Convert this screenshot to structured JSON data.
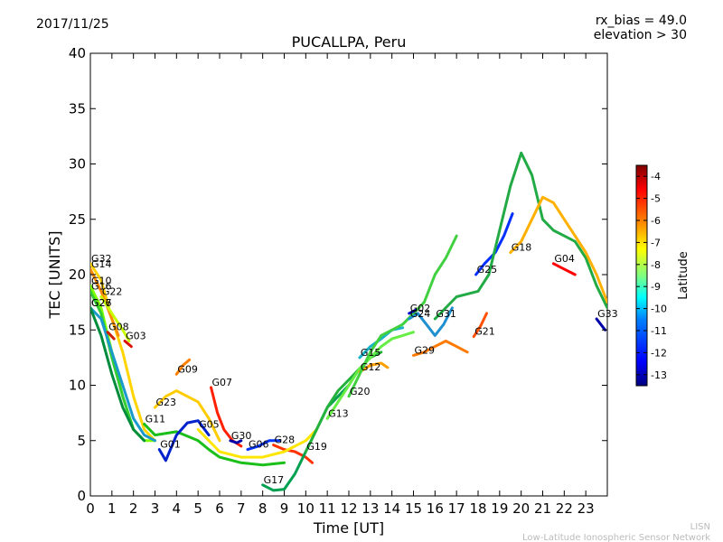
{
  "header": {
    "date": "2017/11/25",
    "rx_bias": "rx_bias = 49.0",
    "elevation": "elevation > 30"
  },
  "footer": {
    "line1": "LISN",
    "line2": "Low-Latitude Ionospheric Sensor Network"
  },
  "chart_data": {
    "type": "line",
    "title": "PUCALLPA, Peru",
    "xlabel": "Time [UT]",
    "ylabel": "TEC [UNITS]",
    "xlim": [
      0,
      24
    ],
    "ylim": [
      0,
      40
    ],
    "xticks": [
      "0",
      "1",
      "2",
      "3",
      "4",
      "5",
      "6",
      "7",
      "8",
      "9",
      "10",
      "11",
      "12",
      "13",
      "14",
      "15",
      "16",
      "17",
      "18",
      "19",
      "20",
      "21",
      "22",
      "23"
    ],
    "yticks": [
      "0",
      "5",
      "10",
      "15",
      "20",
      "25",
      "30",
      "35",
      "40"
    ],
    "colorbar": {
      "label": "Latitude",
      "range": [
        -13.5,
        -3.5
      ],
      "ticks": [
        "-4",
        "-5",
        "-6",
        "-7",
        "-8",
        "-9",
        "-10",
        "-11",
        "-12",
        "-13"
      ],
      "colormap": [
        "#00007f",
        "#0000ff",
        "#007fff",
        "#00ffff",
        "#7fff7f",
        "#ffff00",
        "#ff7f00",
        "#ff0000",
        "#7f0000"
      ]
    },
    "series": [
      {
        "name": "G32",
        "color": "#ffd400",
        "x": [
          0,
          0.5,
          1,
          1.5,
          2,
          2.5,
          3
        ],
        "y": [
          21,
          19.5,
          16,
          13,
          9,
          6,
          5
        ]
      },
      {
        "name": "G14",
        "color": "#ff8c00",
        "x": [
          0,
          0.5,
          1,
          1.3
        ],
        "y": [
          20.5,
          18.5,
          16,
          14.5
        ]
      },
      {
        "name": "G10",
        "color": "#7fff00",
        "x": [
          0,
          0.5,
          1,
          1.5,
          2,
          2.5,
          3
        ],
        "y": [
          19,
          17,
          13,
          9,
          6,
          5,
          5
        ]
      },
      {
        "name": "G16",
        "color": "#33cc33",
        "x": [
          0,
          0.5,
          1,
          1.5,
          2
        ],
        "y": [
          18.5,
          16.5,
          12.5,
          9,
          6
        ]
      },
      {
        "name": "G22",
        "color": "#c8ff00",
        "x": [
          0.5,
          1,
          1.5,
          1.8
        ],
        "y": [
          18,
          16.5,
          15,
          14
        ]
      },
      {
        "name": "G27",
        "color": "#1a99cc",
        "x": [
          0,
          0.5,
          1,
          1.5,
          2,
          2.5,
          3
        ],
        "y": [
          17,
          16,
          13,
          10,
          7,
          5.5,
          5
        ]
      },
      {
        "name": "G26",
        "color": "#008c3c",
        "x": [
          0,
          0.5,
          1,
          1.5,
          2,
          2.5
        ],
        "y": [
          17,
          14.5,
          11,
          8,
          6,
          5
        ]
      },
      {
        "name": "G08",
        "color": "#cc2200",
        "x": [
          0.8,
          1.1
        ],
        "y": [
          14.8,
          14.2
        ]
      },
      {
        "name": "G03",
        "color": "#dd1100",
        "x": [
          1.6,
          1.9
        ],
        "y": [
          14,
          13.5
        ]
      },
      {
        "name": "G23",
        "color": "#ffcc00",
        "x": [
          3,
          3.5,
          4,
          4.5,
          5,
          5.5,
          6
        ],
        "y": [
          8,
          9,
          9.5,
          9,
          8.5,
          7,
          5
        ]
      },
      {
        "name": "G09",
        "color": "#ff8000",
        "x": [
          4,
          4.3,
          4.6
        ],
        "y": [
          11,
          11.8,
          12.3
        ]
      },
      {
        "name": "G07",
        "color": "#ff2000",
        "x": [
          5.6,
          5.9,
          6.2,
          6.6,
          7
        ],
        "y": [
          9.8,
          7.5,
          6,
          5,
          4.5
        ]
      },
      {
        "name": "G11",
        "color": "#1abf1a",
        "x": [
          2.5,
          3,
          4,
          5,
          5.5,
          6,
          7,
          8,
          9
        ],
        "y": [
          6.5,
          5.5,
          5.8,
          5,
          4.2,
          3.5,
          3,
          2.8,
          3
        ]
      },
      {
        "name": "G01",
        "color": "#0022cc",
        "x": [
          3.2,
          3.5,
          4,
          4.5,
          5,
          5.5
        ],
        "y": [
          4.2,
          3.2,
          5.5,
          6.6,
          6.8,
          5.5
        ]
      },
      {
        "name": "G30",
        "color": "#0000aa",
        "x": [
          6.5,
          6.8,
          7
        ],
        "y": [
          5,
          4.8,
          5
        ]
      },
      {
        "name": "G06",
        "color": "#0033ff",
        "x": [
          7.3,
          7.8,
          8.3,
          8.8
        ],
        "y": [
          4.2,
          4.5,
          5,
          5
        ]
      },
      {
        "name": "G28",
        "color": "#ff3300",
        "x": [
          8.5,
          9,
          9.5,
          10,
          10.3
        ],
        "y": [
          4.6,
          4.2,
          4,
          3.5,
          3
        ]
      },
      {
        "name": "G05",
        "color": "#ffe600",
        "x": [
          5,
          6,
          7,
          8,
          9,
          10,
          10.5
        ],
        "y": [
          6,
          4,
          3.5,
          3.5,
          4,
          5,
          6
        ]
      },
      {
        "name": "G17",
        "color": "#00a050",
        "x": [
          8,
          8.5,
          9,
          9.5,
          10,
          10.5,
          11,
          11.5,
          12
        ],
        "y": [
          1,
          0.5,
          0.6,
          2,
          4,
          6,
          8,
          9,
          10
        ]
      },
      {
        "name": "G19",
        "color": "#23b23c",
        "x": [
          10,
          10.5,
          11,
          11.5,
          12,
          12.5,
          13,
          13.5
        ],
        "y": [
          4,
          6,
          8,
          9.5,
          10.5,
          11.5,
          12.5,
          13
        ]
      },
      {
        "name": "G13",
        "color": "#66ee44",
        "x": [
          11,
          11.5,
          12,
          12.5,
          13,
          13.5,
          14,
          14.5,
          15
        ],
        "y": [
          7,
          8.5,
          10,
          11.5,
          12.5,
          13.5,
          14.2,
          14.5,
          14.8
        ]
      },
      {
        "name": "G12",
        "color": "#ffa000",
        "x": [
          12.5,
          13,
          13.5,
          13.8
        ],
        "y": [
          11.2,
          11.8,
          12,
          11.6
        ]
      },
      {
        "name": "G15",
        "color": "#19b4c8",
        "x": [
          12.5,
          13,
          13.5,
          14,
          14.5
        ],
        "y": [
          12.5,
          13.5,
          14.2,
          15,
          15.2
        ]
      },
      {
        "name": "G20",
        "color": "#40d040",
        "x": [
          12,
          12.5,
          13,
          13.5,
          14,
          14.5,
          15,
          15.5,
          16,
          16.5,
          17
        ],
        "y": [
          9,
          11,
          13,
          14.5,
          15,
          15.5,
          16.5,
          17.5,
          20,
          21.5,
          23.5
        ]
      },
      {
        "name": "G02",
        "color": "#0000cc",
        "x": [
          14.8,
          15.1
        ],
        "y": [
          16.5,
          16.8
        ]
      },
      {
        "name": "G24",
        "color": "#1e90d0",
        "x": [
          14.8,
          15.2,
          15.6,
          16,
          16.4,
          16.8
        ],
        "y": [
          16,
          16.5,
          15.5,
          14.5,
          15.5,
          17
        ]
      },
      {
        "name": "G29",
        "color": "#ff7a00",
        "x": [
          15,
          15.5,
          16,
          16.5,
          17,
          17.5
        ],
        "y": [
          12.7,
          13,
          13.5,
          14,
          13.5,
          13
        ]
      },
      {
        "name": "G21",
        "color": "#ff5000",
        "x": [
          17.8,
          18.1,
          18.4
        ],
        "y": [
          14.4,
          15.3,
          16.5
        ]
      },
      {
        "name": "G25",
        "color": "#0030ff",
        "x": [
          17.9,
          18.3,
          18.8,
          19.2,
          19.6
        ],
        "y": [
          20,
          21,
          22,
          23.5,
          25.5
        ]
      },
      {
        "name": "G31",
        "color": "#22aa44",
        "x": [
          16,
          17,
          18,
          18.5,
          19,
          19.5,
          20,
          20.5,
          21,
          21.5,
          22,
          22.5,
          23,
          23.5,
          24
        ],
        "y": [
          16,
          18,
          18.5,
          20,
          24,
          28,
          31,
          29,
          25,
          24,
          23.5,
          23,
          21.5,
          19,
          17
        ]
      },
      {
        "name": "G18",
        "color": "#ffb000",
        "x": [
          19.5,
          20,
          20.5,
          21,
          21.5,
          22,
          22.5,
          23,
          23.5,
          24
        ],
        "y": [
          22,
          23,
          25,
          27,
          26.5,
          25,
          23.5,
          22,
          20,
          17.5
        ]
      },
      {
        "name": "G04",
        "color": "#ff0000",
        "x": [
          21.5,
          22,
          22.5
        ],
        "y": [
          21,
          20.5,
          20
        ]
      },
      {
        "name": "G33",
        "color": "#0000aa",
        "x": [
          23.5,
          23.9
        ],
        "y": [
          16,
          15
        ]
      }
    ]
  }
}
